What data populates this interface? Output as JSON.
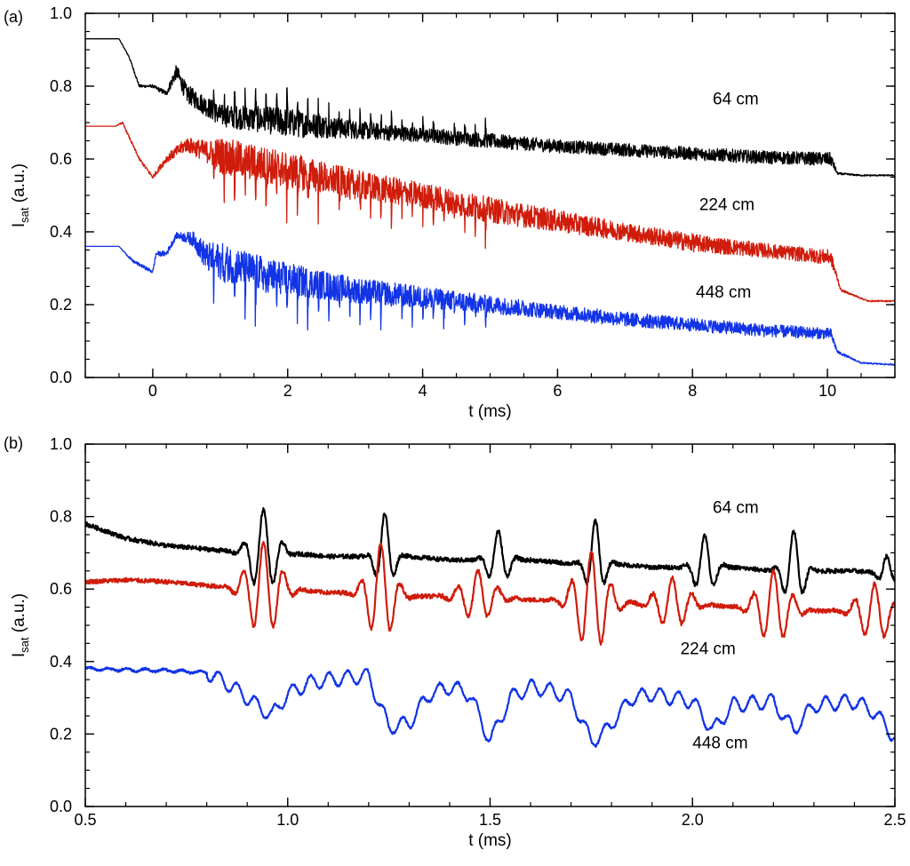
{
  "panel_a": {
    "panel_label": "(a)"
  },
  "panel_b": {
    "panel_label": "(b)"
  },
  "chart_data": [
    {
      "type": "line",
      "panel": "(a)",
      "xlabel": "t (ms)",
      "ylabel_main": "I",
      "ylabel_sub": "sat",
      "ylabel_tail": " (a.u.)",
      "xlim": [
        -1,
        11
      ],
      "ylim": [
        0,
        1.0
      ],
      "xticks": [
        0,
        2,
        4,
        6,
        8,
        10
      ],
      "xtick_labels": [
        "0",
        "2",
        "4",
        "6",
        "8",
        "10"
      ],
      "yticks": [
        0,
        0.2,
        0.4,
        0.6,
        0.8,
        1.0
      ],
      "ytick_labels": [
        "0.0",
        "0.2",
        "0.4",
        "0.6",
        "0.8",
        "1.0"
      ],
      "grid": false,
      "legend": "none",
      "series": [
        {
          "name": "64 cm",
          "color": "#000000",
          "label_at": [
            8.3,
            0.75
          ],
          "x": [
            -1.0,
            -0.5,
            -0.35,
            -0.2,
            0.0,
            0.2,
            0.35,
            0.5,
            1.0,
            1.5,
            2.0,
            3.0,
            4.0,
            5.0,
            6.0,
            7.0,
            8.0,
            9.0,
            10.05,
            10.15,
            10.5,
            11.0
          ],
          "y": [
            0.93,
            0.93,
            0.88,
            0.8,
            0.8,
            0.78,
            0.84,
            0.78,
            0.72,
            0.71,
            0.7,
            0.68,
            0.665,
            0.65,
            0.635,
            0.625,
            0.615,
            0.605,
            0.6,
            0.56,
            0.555,
            0.555
          ],
          "noise": [
            0,
            0,
            0.003,
            0.004,
            0.004,
            0.008,
            0.02,
            0.025,
            0.03,
            0.035,
            0.04,
            0.025,
            0.02,
            0.02,
            0.018,
            0.018,
            0.018,
            0.018,
            0.018,
            0.003,
            0.002,
            0.002
          ]
        },
        {
          "name": "224 cm",
          "color": "#d01c0b",
          "label_at": [
            8.1,
            0.46
          ],
          "x": [
            -1.0,
            -0.55,
            -0.45,
            -0.2,
            0.0,
            0.2,
            0.5,
            0.8,
            1.0,
            1.5,
            2.0,
            3.0,
            4.0,
            5.0,
            6.0,
            7.0,
            8.0,
            9.0,
            10.05,
            10.2,
            10.6,
            11.0
          ],
          "y": [
            0.69,
            0.69,
            0.7,
            0.6,
            0.55,
            0.6,
            0.64,
            0.62,
            0.61,
            0.59,
            0.57,
            0.53,
            0.5,
            0.46,
            0.43,
            0.4,
            0.37,
            0.35,
            0.33,
            0.24,
            0.21,
            0.21
          ],
          "noise": [
            0,
            0,
            0.003,
            0.004,
            0.005,
            0.01,
            0.02,
            0.03,
            0.05,
            0.05,
            0.05,
            0.04,
            0.035,
            0.035,
            0.03,
            0.025,
            0.025,
            0.02,
            0.02,
            0.003,
            0.002,
            0.002
          ]
        },
        {
          "name": "448 cm",
          "color": "#1234e6",
          "label_at": [
            8.05,
            0.22
          ],
          "x": [
            -1.0,
            -0.5,
            -0.3,
            0.0,
            0.05,
            0.2,
            0.35,
            0.6,
            0.8,
            1.0,
            1.5,
            2.0,
            3.0,
            4.0,
            5.0,
            6.0,
            7.0,
            8.0,
            9.0,
            10.05,
            10.15,
            10.5,
            11.0
          ],
          "y": [
            0.36,
            0.36,
            0.32,
            0.29,
            0.34,
            0.34,
            0.39,
            0.38,
            0.33,
            0.32,
            0.29,
            0.27,
            0.24,
            0.22,
            0.2,
            0.18,
            0.16,
            0.145,
            0.13,
            0.12,
            0.07,
            0.04,
            0.035
          ],
          "noise": [
            0,
            0,
            0.004,
            0.005,
            0.006,
            0.008,
            0.008,
            0.02,
            0.04,
            0.05,
            0.05,
            0.045,
            0.035,
            0.03,
            0.025,
            0.02,
            0.02,
            0.018,
            0.018,
            0.015,
            0.004,
            0.002,
            0.002
          ]
        }
      ]
    },
    {
      "type": "line",
      "panel": "(b)",
      "xlabel": "t (ms)",
      "ylabel_main": "I",
      "ylabel_sub": "sat",
      "ylabel_tail": " (a.u.)",
      "xlim": [
        0.5,
        2.5
      ],
      "ylim": [
        0,
        1.0
      ],
      "xticks": [
        0.5,
        1.0,
        1.5,
        2.0,
        2.5
      ],
      "xtick_labels": [
        "0.5",
        "1.0",
        "1.5",
        "2.0",
        "2.5"
      ],
      "yticks": [
        0,
        0.2,
        0.4,
        0.6,
        0.8,
        1.0
      ],
      "ytick_labels": [
        "0.0",
        "0.2",
        "0.4",
        "0.6",
        "0.8",
        "1.0"
      ],
      "grid": false,
      "legend": "none",
      "series": [
        {
          "name": "64 cm",
          "color": "#000000",
          "label_at": [
            2.05,
            0.81
          ],
          "x": [
            0.5,
            0.6,
            0.7,
            0.8,
            0.9,
            1.0,
            1.1,
            1.2,
            1.3,
            1.4,
            1.5,
            1.6,
            1.7,
            1.8,
            1.9,
            2.0,
            2.1,
            2.2,
            2.3,
            2.4,
            2.5
          ],
          "y": [
            0.78,
            0.74,
            0.72,
            0.71,
            0.7,
            0.7,
            0.69,
            0.69,
            0.69,
            0.68,
            0.68,
            0.68,
            0.67,
            0.67,
            0.66,
            0.66,
            0.66,
            0.65,
            0.65,
            0.65,
            0.64
          ],
          "bursts": [
            [
              0.94,
              0.12,
              0.04
            ],
            [
              1.24,
              0.12,
              0.025
            ],
            [
              1.52,
              0.08,
              0.03
            ],
            [
              1.76,
              0.12,
              0.025
            ],
            [
              2.03,
              0.09,
              0.03
            ],
            [
              2.25,
              0.11,
              0.03
            ],
            [
              2.48,
              0.05,
              0.02
            ]
          ],
          "burst_freq": 20
        },
        {
          "name": "224 cm",
          "color": "#d01c0b",
          "label_at": [
            1.97,
            0.42
          ],
          "x": [
            0.5,
            0.6,
            0.7,
            0.8,
            0.9,
            1.0,
            1.1,
            1.2,
            1.3,
            1.4,
            1.5,
            1.6,
            1.7,
            1.8,
            1.9,
            2.0,
            2.1,
            2.2,
            2.3,
            2.4,
            2.5
          ],
          "y": [
            0.62,
            0.625,
            0.62,
            0.61,
            0.6,
            0.6,
            0.59,
            0.59,
            0.58,
            0.58,
            0.58,
            0.57,
            0.57,
            0.56,
            0.56,
            0.56,
            0.55,
            0.55,
            0.54,
            0.54,
            0.53
          ],
          "bursts": [
            [
              0.94,
              0.13,
              0.05
            ],
            [
              1.23,
              0.14,
              0.04
            ],
            [
              1.47,
              0.07,
              0.05
            ],
            [
              1.75,
              0.14,
              0.05
            ],
            [
              1.95,
              0.07,
              0.05
            ],
            [
              2.2,
              0.1,
              0.05
            ],
            [
              2.45,
              0.08,
              0.05
            ]
          ],
          "burst_freq": 20
        },
        {
          "name": "448 cm",
          "color": "#1234e6",
          "label_at": [
            2.0,
            0.16
          ],
          "x": [
            0.5,
            0.7,
            0.8,
            0.85,
            0.9,
            0.96,
            1.0,
            1.05,
            1.1,
            1.2,
            1.22,
            1.25,
            1.3,
            1.35,
            1.4,
            1.45,
            1.5,
            1.55,
            1.6,
            1.65,
            1.7,
            1.75,
            1.78,
            1.85,
            1.9,
            2.0,
            2.05,
            2.1,
            2.2,
            2.25,
            2.3,
            2.4,
            2.45,
            2.5
          ],
          "y": [
            0.38,
            0.375,
            0.37,
            0.34,
            0.3,
            0.25,
            0.31,
            0.34,
            0.35,
            0.36,
            0.3,
            0.22,
            0.23,
            0.31,
            0.33,
            0.31,
            0.18,
            0.3,
            0.33,
            0.32,
            0.3,
            0.18,
            0.2,
            0.3,
            0.31,
            0.29,
            0.21,
            0.28,
            0.29,
            0.21,
            0.28,
            0.29,
            0.26,
            0.19
          ],
          "ripple": 0.02,
          "ripple_freq": 22
        }
      ]
    }
  ]
}
